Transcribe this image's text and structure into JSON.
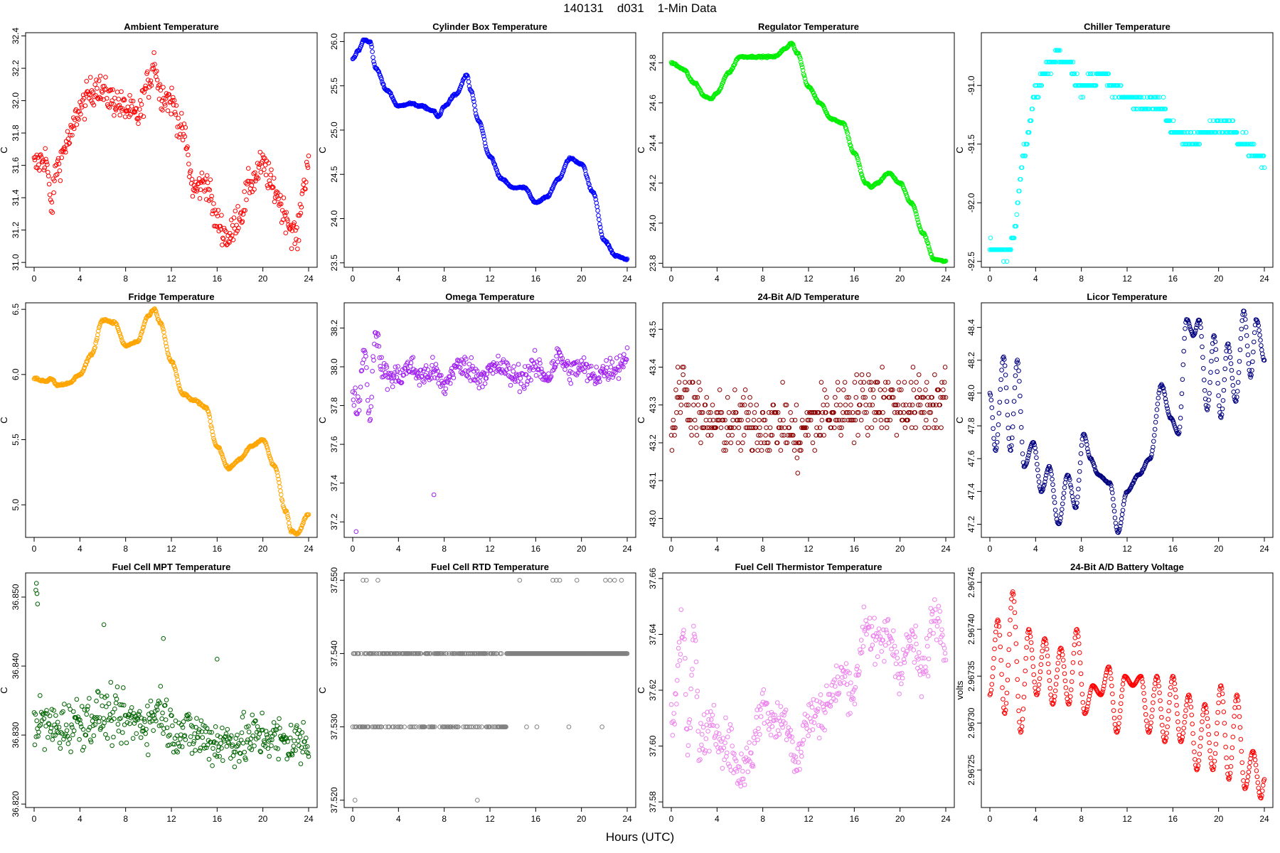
{
  "header": {
    "title": "140131    d031    1-Min Data",
    "xaxis_label": "Hours (UTC)"
  },
  "chart_data": [
    {
      "type": "scatter",
      "title": "Ambient Temperature",
      "ylabel": "C",
      "color": "#ff0000",
      "xlim": [
        0,
        24
      ],
      "xticks": [
        0,
        4,
        8,
        12,
        16,
        20,
        24
      ],
      "ylim": [
        30.97,
        32.42
      ],
      "yticks": [
        "31.0",
        "31.2",
        "31.4",
        "31.6",
        "31.8",
        "32.0",
        "32.2",
        "32.4"
      ],
      "noise": 0.09,
      "x": [
        0,
        1,
        1.5,
        2,
        3,
        4,
        5,
        5.5,
        6,
        7,
        8,
        9,
        10,
        10.5,
        11,
        12,
        13,
        14,
        15,
        16,
        17,
        18,
        19,
        20,
        21,
        22,
        22.5,
        23,
        23.5,
        24
      ],
      "y": [
        31.6,
        31.65,
        31.35,
        31.6,
        31.75,
        31.95,
        32.05,
        32.1,
        32.05,
        32.0,
        31.95,
        31.9,
        32.1,
        32.25,
        32.05,
        32.0,
        31.8,
        31.45,
        31.5,
        31.25,
        31.15,
        31.3,
        31.5,
        31.6,
        31.45,
        31.3,
        31.2,
        31.15,
        31.45,
        31.65
      ]
    },
    {
      "type": "scatter",
      "title": "Cylinder Box Temperature",
      "ylabel": "C",
      "color": "#0000ff",
      "xlim": [
        0,
        24
      ],
      "xticks": [
        0,
        4,
        8,
        12,
        16,
        20,
        24
      ],
      "ylim": [
        23.45,
        26.1
      ],
      "yticks": [
        "23.5",
        "24.0",
        "24.5",
        "25.0",
        "25.5",
        "26.0"
      ],
      "noise": 0.01,
      "x": [
        0,
        0.5,
        1,
        1.5,
        2,
        3,
        4,
        5,
        6,
        7,
        7.5,
        8,
        9,
        10,
        10.3,
        11,
        12,
        13,
        14,
        15,
        16,
        17,
        18,
        19,
        20,
        21,
        22,
        23,
        24
      ],
      "y": [
        25.8,
        25.9,
        26.02,
        26.0,
        25.7,
        25.45,
        25.27,
        25.3,
        25.27,
        25.22,
        25.15,
        25.27,
        25.4,
        25.62,
        25.45,
        25.1,
        24.7,
        24.45,
        24.35,
        24.35,
        24.18,
        24.25,
        24.45,
        24.68,
        24.62,
        24.3,
        23.75,
        23.58,
        23.54
      ]
    },
    {
      "type": "scatter",
      "title": "Regulator Temperature",
      "ylabel": "C",
      "color": "#00ee00",
      "xlim": [
        0,
        24
      ],
      "xticks": [
        0,
        4,
        8,
        12,
        16,
        20,
        24
      ],
      "ylim": [
        23.78,
        24.95
      ],
      "yticks": [
        "23.8",
        "24.0",
        "24.2",
        "24.4",
        "24.6",
        "24.8"
      ],
      "noise": 0.004,
      "x": [
        0,
        1,
        2,
        3,
        3.5,
        4,
        5,
        6,
        7,
        8,
        9,
        10,
        10.5,
        11,
        12,
        13,
        14,
        15,
        16,
        17,
        17.5,
        18,
        19,
        20,
        21,
        22,
        23,
        24
      ],
      "y": [
        24.8,
        24.77,
        24.7,
        24.63,
        24.62,
        24.65,
        24.75,
        24.83,
        24.83,
        24.83,
        24.83,
        24.87,
        24.9,
        24.85,
        24.68,
        24.6,
        24.52,
        24.5,
        24.35,
        24.2,
        24.18,
        24.2,
        24.25,
        24.2,
        24.1,
        23.95,
        23.82,
        23.81
      ]
    },
    {
      "type": "scatter",
      "title": "Chiller Temperature",
      "ylabel": "C",
      "color": "#00ffff",
      "xlim": [
        0,
        24
      ],
      "xticks": [
        0,
        4,
        8,
        12,
        16,
        20,
        24
      ],
      "ylim": [
        -92.55,
        -90.55
      ],
      "yticks": [
        "-92.5",
        "-92.0",
        "-91.5",
        "-91.0"
      ],
      "noise": 0.05,
      "quantize": 0.1,
      "x": [
        0,
        1,
        1.5,
        2,
        3,
        4,
        5,
        6,
        7,
        8,
        9,
        10,
        11,
        12,
        13,
        14,
        15,
        16,
        17,
        18,
        19,
        20,
        21,
        22,
        23,
        24
      ],
      "y": [
        -92.35,
        -92.4,
        -92.45,
        -92.3,
        -91.6,
        -91.05,
        -90.85,
        -90.75,
        -90.8,
        -91.05,
        -90.95,
        -90.9,
        -91.05,
        -91.1,
        -91.15,
        -91.15,
        -91.15,
        -91.4,
        -91.45,
        -91.45,
        -91.4,
        -91.35,
        -91.35,
        -91.45,
        -91.55,
        -91.65
      ]
    },
    {
      "type": "scatter",
      "title": "Fridge Temperature",
      "ylabel": "C",
      "color": "#ffa500",
      "xlim": [
        0,
        24
      ],
      "xticks": [
        0,
        4,
        8,
        12,
        16,
        20,
        24
      ],
      "ylim": [
        4.75,
        6.55
      ],
      "yticks": [
        "5.0",
        "5.5",
        "6.0",
        "6.5"
      ],
      "noise": 0.008,
      "x": [
        0,
        1,
        1.5,
        2,
        3,
        4,
        5,
        6,
        7,
        8,
        9,
        10,
        10.5,
        11,
        12,
        13,
        14,
        15,
        16,
        17,
        18,
        19,
        20,
        21,
        22,
        22.5,
        23,
        24
      ],
      "y": [
        5.97,
        5.95,
        5.97,
        5.92,
        5.93,
        6.0,
        6.15,
        6.42,
        6.4,
        6.22,
        6.25,
        6.45,
        6.5,
        6.4,
        6.1,
        5.85,
        5.8,
        5.75,
        5.45,
        5.28,
        5.35,
        5.45,
        5.5,
        5.3,
        4.95,
        4.8,
        4.78,
        4.93
      ]
    },
    {
      "type": "scatter",
      "title": "Omega Temperature",
      "ylabel": "C",
      "color": "#a020f0",
      "xlim": [
        0,
        24
      ],
      "xticks": [
        0,
        4,
        8,
        12,
        16,
        20,
        24
      ],
      "ylim": [
        37.12,
        38.33
      ],
      "yticks": [
        "37.2",
        "37.4",
        "37.6",
        "37.8",
        "38.0",
        "38.2"
      ],
      "noise": 0.06,
      "outliers": [
        [
          0.3,
          37.15
        ],
        [
          7.1,
          37.34
        ]
      ],
      "x": [
        0,
        0.5,
        1,
        1.5,
        2,
        2.5,
        3,
        4,
        5,
        6,
        7,
        8,
        9,
        10,
        11,
        12,
        13,
        14,
        15,
        16,
        17,
        18,
        19,
        20,
        21,
        22,
        23,
        24
      ],
      "y": [
        37.85,
        37.8,
        38.1,
        37.75,
        38.2,
        38.0,
        37.95,
        37.95,
        38.0,
        37.95,
        37.98,
        37.9,
        38.0,
        38.0,
        37.95,
        37.98,
        38.0,
        37.95,
        37.95,
        38.0,
        37.95,
        38.05,
        37.98,
        38.0,
        37.95,
        37.98,
        38.0,
        38.05
      ]
    },
    {
      "type": "scatter",
      "title": "24-Bit A/D Temperature",
      "ylabel": "C",
      "color": "#8b0000",
      "xlim": [
        0,
        24
      ],
      "xticks": [
        0,
        4,
        8,
        12,
        16,
        20,
        24
      ],
      "ylim": [
        42.95,
        43.57
      ],
      "yticks": [
        "43.0",
        "43.1",
        "43.2",
        "43.3",
        "43.4",
        "43.5"
      ],
      "noise": 0.08,
      "quantize": 0.02,
      "x": [
        0,
        1,
        2,
        3,
        4,
        6,
        8,
        10,
        11,
        12,
        14,
        16,
        18,
        20,
        22,
        24
      ],
      "y": [
        43.25,
        43.35,
        43.3,
        43.25,
        43.25,
        43.25,
        43.25,
        43.25,
        43.2,
        43.25,
        43.28,
        43.3,
        43.32,
        43.3,
        43.3,
        43.32
      ]
    },
    {
      "type": "scatter",
      "title": "Licor Temperature",
      "ylabel": "C",
      "color": "#000080",
      "xlim": [
        0,
        24
      ],
      "xticks": [
        0,
        4,
        8,
        12,
        16,
        20,
        24
      ],
      "ylim": [
        47.12,
        48.55
      ],
      "yticks": [
        "47.2",
        "47.4",
        "47.6",
        "47.8",
        "48.0",
        "48.2",
        "48.4"
      ],
      "noise": 0.004,
      "x": [
        0,
        0.5,
        1.2,
        1.8,
        2.4,
        3.0,
        3.8,
        4.5,
        5.2,
        6.0,
        6.8,
        7.5,
        8.2,
        8.8,
        9.5,
        10.5,
        11.2,
        12.0,
        13.0,
        14.0,
        15.0,
        15.8,
        16.5,
        17.2,
        17.8,
        18.3,
        19.0,
        19.6,
        20.2,
        20.8,
        21.5,
        22.2,
        22.8,
        23.3,
        24
      ],
      "y": [
        48.0,
        47.65,
        48.22,
        47.65,
        48.2,
        47.55,
        47.7,
        47.4,
        47.55,
        47.2,
        47.5,
        47.3,
        47.75,
        47.6,
        47.5,
        47.45,
        47.15,
        47.4,
        47.5,
        47.6,
        48.05,
        47.85,
        47.75,
        48.45,
        48.35,
        48.45,
        47.9,
        48.35,
        47.85,
        48.3,
        47.95,
        48.5,
        48.1,
        48.45,
        48.2
      ]
    },
    {
      "type": "scatter",
      "title": "Fuel Cell MPT Temperature",
      "ylabel": "C",
      "color": "#006400",
      "xlim": [
        0,
        24
      ],
      "xticks": [
        0,
        4,
        8,
        12,
        16,
        20,
        24
      ],
      "ylim": [
        36.8195,
        36.8535
      ],
      "yticks": [
        "36.820",
        "36.830",
        "36.840",
        "36.850"
      ],
      "noise": 0.0035,
      "outliers": [
        [
          0.2,
          36.852
        ],
        [
          0.25,
          36.8505
        ],
        [
          0.3,
          36.849
        ],
        [
          0.15,
          36.851
        ],
        [
          6.1,
          36.846
        ],
        [
          11.3,
          36.844
        ],
        [
          16.0,
          36.841
        ]
      ],
      "x": [
        0,
        2,
        4,
        6,
        8,
        10,
        11,
        12,
        14,
        16,
        18,
        20,
        22,
        24
      ],
      "y": [
        36.832,
        36.831,
        36.832,
        36.833,
        36.832,
        36.832,
        36.834,
        36.831,
        36.83,
        36.829,
        36.829,
        36.83,
        36.829,
        36.829
      ]
    },
    {
      "type": "scatter",
      "title": "Fuel Cell RTD Temperature",
      "ylabel": "C",
      "color": "#808080",
      "xlim": [
        0,
        24
      ],
      "xticks": [
        0,
        4,
        8,
        12,
        16,
        20,
        24
      ],
      "ylim": [
        37.519,
        37.551
      ],
      "yticks": [
        "37.520",
        "37.530",
        "37.540",
        "37.550"
      ],
      "levels": [
        37.53,
        37.54
      ],
      "levels_until": 13.5,
      "outliers": [
        [
          0.2,
          37.52
        ],
        [
          10.9,
          37.52
        ],
        [
          0.9,
          37.55
        ],
        [
          1.2,
          37.55
        ],
        [
          2.2,
          37.55
        ],
        [
          14.6,
          37.55
        ],
        [
          17.5,
          37.55
        ],
        [
          17.8,
          37.55
        ],
        [
          18.1,
          37.55
        ],
        [
          19.6,
          37.55
        ],
        [
          22.1,
          37.55
        ],
        [
          22.5,
          37.55
        ],
        [
          22.9,
          37.55
        ],
        [
          23.5,
          37.55
        ],
        [
          15.2,
          37.53
        ],
        [
          16.1,
          37.53
        ],
        [
          18.9,
          37.53
        ],
        [
          21.8,
          37.53
        ]
      ]
    },
    {
      "type": "scatter",
      "title": "Fuel Cell Thermistor Temperature",
      "ylabel": "C",
      "color": "#ee82ee",
      "xlim": [
        0,
        24
      ],
      "xticks": [
        0,
        4,
        8,
        12,
        16,
        20,
        24
      ],
      "ylim": [
        37.578,
        37.662
      ],
      "yticks": [
        "37.58",
        "37.60",
        "37.62",
        "37.64",
        "37.66"
      ],
      "noise": 0.008,
      "x": [
        0,
        1,
        1.5,
        2,
        2.5,
        3,
        4,
        5,
        6,
        7,
        8,
        9,
        10,
        11,
        12,
        13,
        14,
        15,
        16,
        17,
        18,
        19,
        20,
        21,
        22,
        23,
        24
      ],
      "y": [
        37.61,
        37.64,
        37.6,
        37.64,
        37.6,
        37.605,
        37.605,
        37.6,
        37.59,
        37.598,
        37.615,
        37.608,
        37.61,
        37.595,
        37.61,
        37.612,
        37.618,
        37.625,
        37.62,
        37.645,
        37.635,
        37.64,
        37.628,
        37.638,
        37.625,
        37.648,
        37.64
      ]
    },
    {
      "type": "scatter",
      "title": "24-Bit A/D Battery Voltage",
      "ylabel": "volts",
      "color": "#ff0000",
      "xlim": [
        0,
        24
      ],
      "xticks": [
        0,
        4,
        8,
        12,
        16,
        20,
        24
      ],
      "ylim": [
        2.96721,
        2.96746
      ],
      "yticks": [
        "2.96725",
        "2.96730",
        "2.96735",
        "2.96740",
        "2.96745"
      ],
      "noise": 0.0,
      "x": [
        0,
        0.7,
        1.3,
        2.0,
        2.7,
        3.4,
        4.1,
        4.8,
        5.5,
        6.2,
        6.9,
        7.6,
        8.3,
        9.0,
        9.7,
        10.4,
        11.1,
        11.8,
        12.5,
        13.2,
        13.9,
        14.6,
        15.3,
        16.0,
        16.7,
        17.4,
        18.1,
        18.8,
        19.5,
        20.2,
        20.9,
        21.6,
        22.3,
        23.0,
        23.7,
        24
      ],
      "y": [
        2.96733,
        2.96741,
        2.96731,
        2.96744,
        2.96729,
        2.9674,
        2.96733,
        2.96739,
        2.96732,
        2.96738,
        2.96732,
        2.9674,
        2.96731,
        2.96734,
        2.96733,
        2.96736,
        2.96729,
        2.96735,
        2.96734,
        2.96735,
        2.96729,
        2.96735,
        2.96728,
        2.96735,
        2.96728,
        2.96733,
        2.96725,
        2.96732,
        2.96725,
        2.96734,
        2.96724,
        2.96733,
        2.96723,
        2.96727,
        2.96722,
        2.96724
      ]
    }
  ]
}
